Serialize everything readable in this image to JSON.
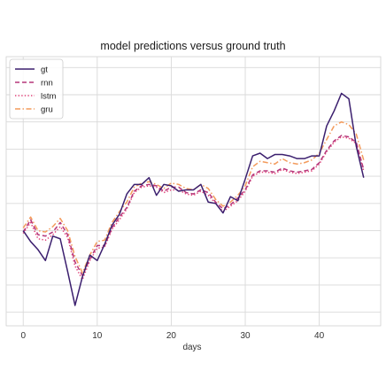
{
  "chart_data": {
    "type": "line",
    "title": "model predictions versus ground truth",
    "xlabel": "days",
    "ylabel": "",
    "xlim": [
      -2.3,
      48.3
    ],
    "ylim": [
      -5.5,
      4.4
    ],
    "x_ticks": [
      0,
      10,
      20,
      30,
      40
    ],
    "y_grid": [
      -5,
      -4,
      -3,
      -2,
      -1,
      0,
      1,
      2,
      3,
      4
    ],
    "grid": true,
    "legend_position": "top-left",
    "x": [
      0,
      1,
      2,
      3,
      4,
      5,
      6,
      7,
      8,
      9,
      10,
      11,
      12,
      13,
      14,
      15,
      16,
      17,
      18,
      19,
      20,
      21,
      22,
      23,
      24,
      25,
      26,
      27,
      28,
      29,
      30,
      31,
      32,
      33,
      34,
      35,
      36,
      37,
      38,
      39,
      40,
      41,
      42,
      43,
      44,
      45,
      46
    ],
    "series": [
      {
        "name": "gt",
        "color": "#3b1f6e",
        "dash": "solid",
        "values": [
          -2.0,
          -2.4,
          -2.7,
          -3.1,
          -2.2,
          -2.3,
          -3.5,
          -4.75,
          -3.7,
          -2.9,
          -3.1,
          -2.5,
          -1.8,
          -1.4,
          -0.65,
          -0.3,
          -0.3,
          -0.05,
          -0.7,
          -0.3,
          -0.35,
          -0.55,
          -0.5,
          -0.5,
          -0.3,
          -0.95,
          -1.0,
          -1.35,
          -0.75,
          -0.9,
          -0.1,
          0.75,
          0.85,
          0.65,
          0.8,
          0.8,
          0.75,
          0.65,
          0.65,
          0.75,
          0.75,
          1.85,
          2.4,
          3.05,
          2.85,
          1.1,
          -0.05
        ]
      },
      {
        "name": "rnn",
        "color": "#b5367a",
        "dash": "dashed",
        "values": [
          -2.05,
          -1.6,
          -2.15,
          -2.2,
          -2.05,
          -1.7,
          -2.15,
          -3.15,
          -3.65,
          -3.05,
          -2.55,
          -2.55,
          -1.9,
          -1.5,
          -1.15,
          -0.55,
          -0.35,
          -0.3,
          -0.35,
          -0.55,
          -0.4,
          -0.4,
          -0.6,
          -0.65,
          -0.5,
          -0.6,
          -0.95,
          -1.2,
          -1.05,
          -0.8,
          -0.5,
          0.05,
          0.2,
          0.2,
          0.15,
          0.3,
          0.2,
          0.15,
          0.2,
          0.25,
          0.5,
          0.95,
          1.3,
          1.5,
          1.45,
          1.25,
          0.25
        ]
      },
      {
        "name": "lstm",
        "color": "#e0447a",
        "dash": "dotted",
        "values": [
          -2.1,
          -1.7,
          -2.3,
          -2.35,
          -2.15,
          -1.85,
          -2.25,
          -3.3,
          -3.8,
          -3.1,
          -2.65,
          -2.6,
          -1.95,
          -1.6,
          -1.2,
          -0.6,
          -0.4,
          -0.35,
          -0.4,
          -0.6,
          -0.5,
          -0.5,
          -0.65,
          -0.7,
          -0.55,
          -0.7,
          -1.0,
          -1.3,
          -1.1,
          -0.9,
          -0.55,
          0.0,
          0.15,
          0.15,
          0.1,
          0.25,
          0.15,
          0.1,
          0.15,
          0.2,
          0.45,
          0.9,
          1.25,
          1.45,
          1.4,
          1.2,
          0.2
        ]
      },
      {
        "name": "gru",
        "color": "#f39b5c",
        "dash": "dashdot",
        "values": [
          -1.9,
          -1.5,
          -2.0,
          -2.05,
          -1.85,
          -1.55,
          -2.0,
          -2.95,
          -3.55,
          -2.9,
          -2.4,
          -2.35,
          -1.7,
          -1.3,
          -0.95,
          -0.4,
          -0.25,
          -0.2,
          -0.3,
          -0.45,
          -0.25,
          -0.3,
          -0.45,
          -0.5,
          -0.3,
          -0.45,
          -0.85,
          -1.1,
          -0.95,
          -0.7,
          -0.35,
          0.35,
          0.55,
          0.5,
          0.45,
          0.65,
          0.5,
          0.45,
          0.5,
          0.6,
          0.85,
          1.35,
          1.85,
          2.0,
          1.9,
          1.55,
          0.6
        ]
      }
    ]
  }
}
